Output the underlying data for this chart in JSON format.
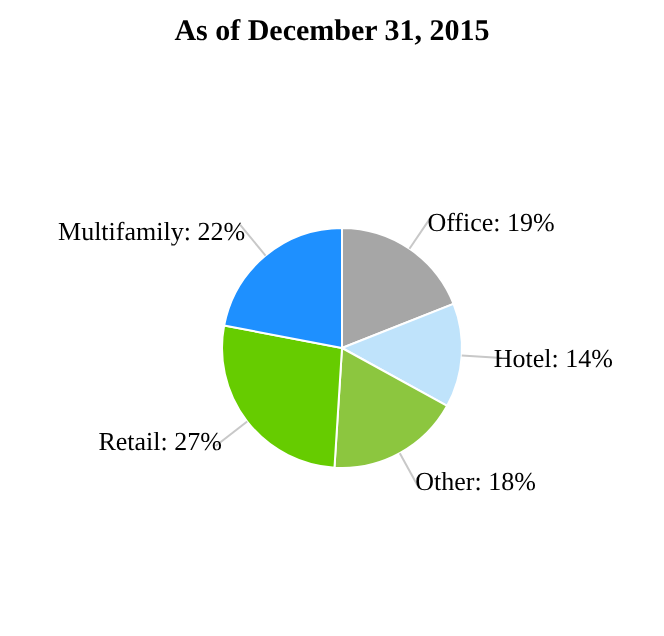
{
  "chart_data": {
    "type": "pie",
    "title": "As of December 31, 2015",
    "categories": [
      "Office",
      "Hotel",
      "Other",
      "Retail",
      "Multifamily"
    ],
    "values": [
      19,
      14,
      18,
      27,
      22
    ],
    "value_labels": [
      "19%",
      "14%",
      "18%",
      "27%",
      "22%"
    ],
    "colors": [
      "#a6a6a6",
      "#bfe3fb",
      "#8cc63f",
      "#66cc00",
      "#1e90ff"
    ],
    "legend": false
  }
}
